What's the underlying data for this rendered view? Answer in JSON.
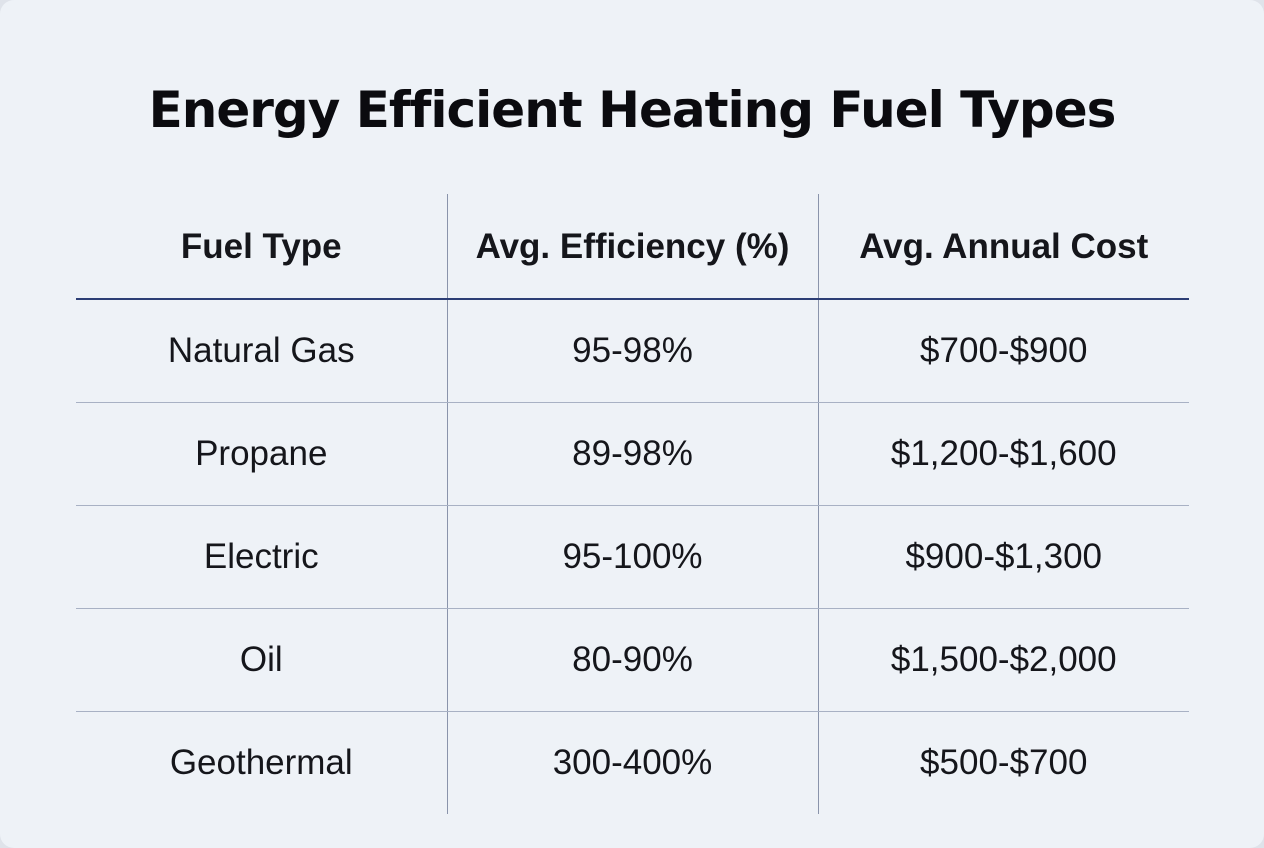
{
  "title": "Energy Efficient Heating Fuel Types",
  "table": {
    "headers": [
      "Fuel Type",
      "Avg. Efficiency (%)",
      "Avg. Annual Cost"
    ],
    "rows": [
      [
        "Natural Gas",
        "95-98%",
        "$700-$900"
      ],
      [
        "Propane",
        "89-98%",
        "$1,200-$1,600"
      ],
      [
        "Electric",
        "95-100%",
        "$900-$1,300"
      ],
      [
        "Oil",
        "80-90%",
        "$1,500-$2,000"
      ],
      [
        "Geothermal",
        "300-400%",
        "$500-$700"
      ]
    ]
  }
}
